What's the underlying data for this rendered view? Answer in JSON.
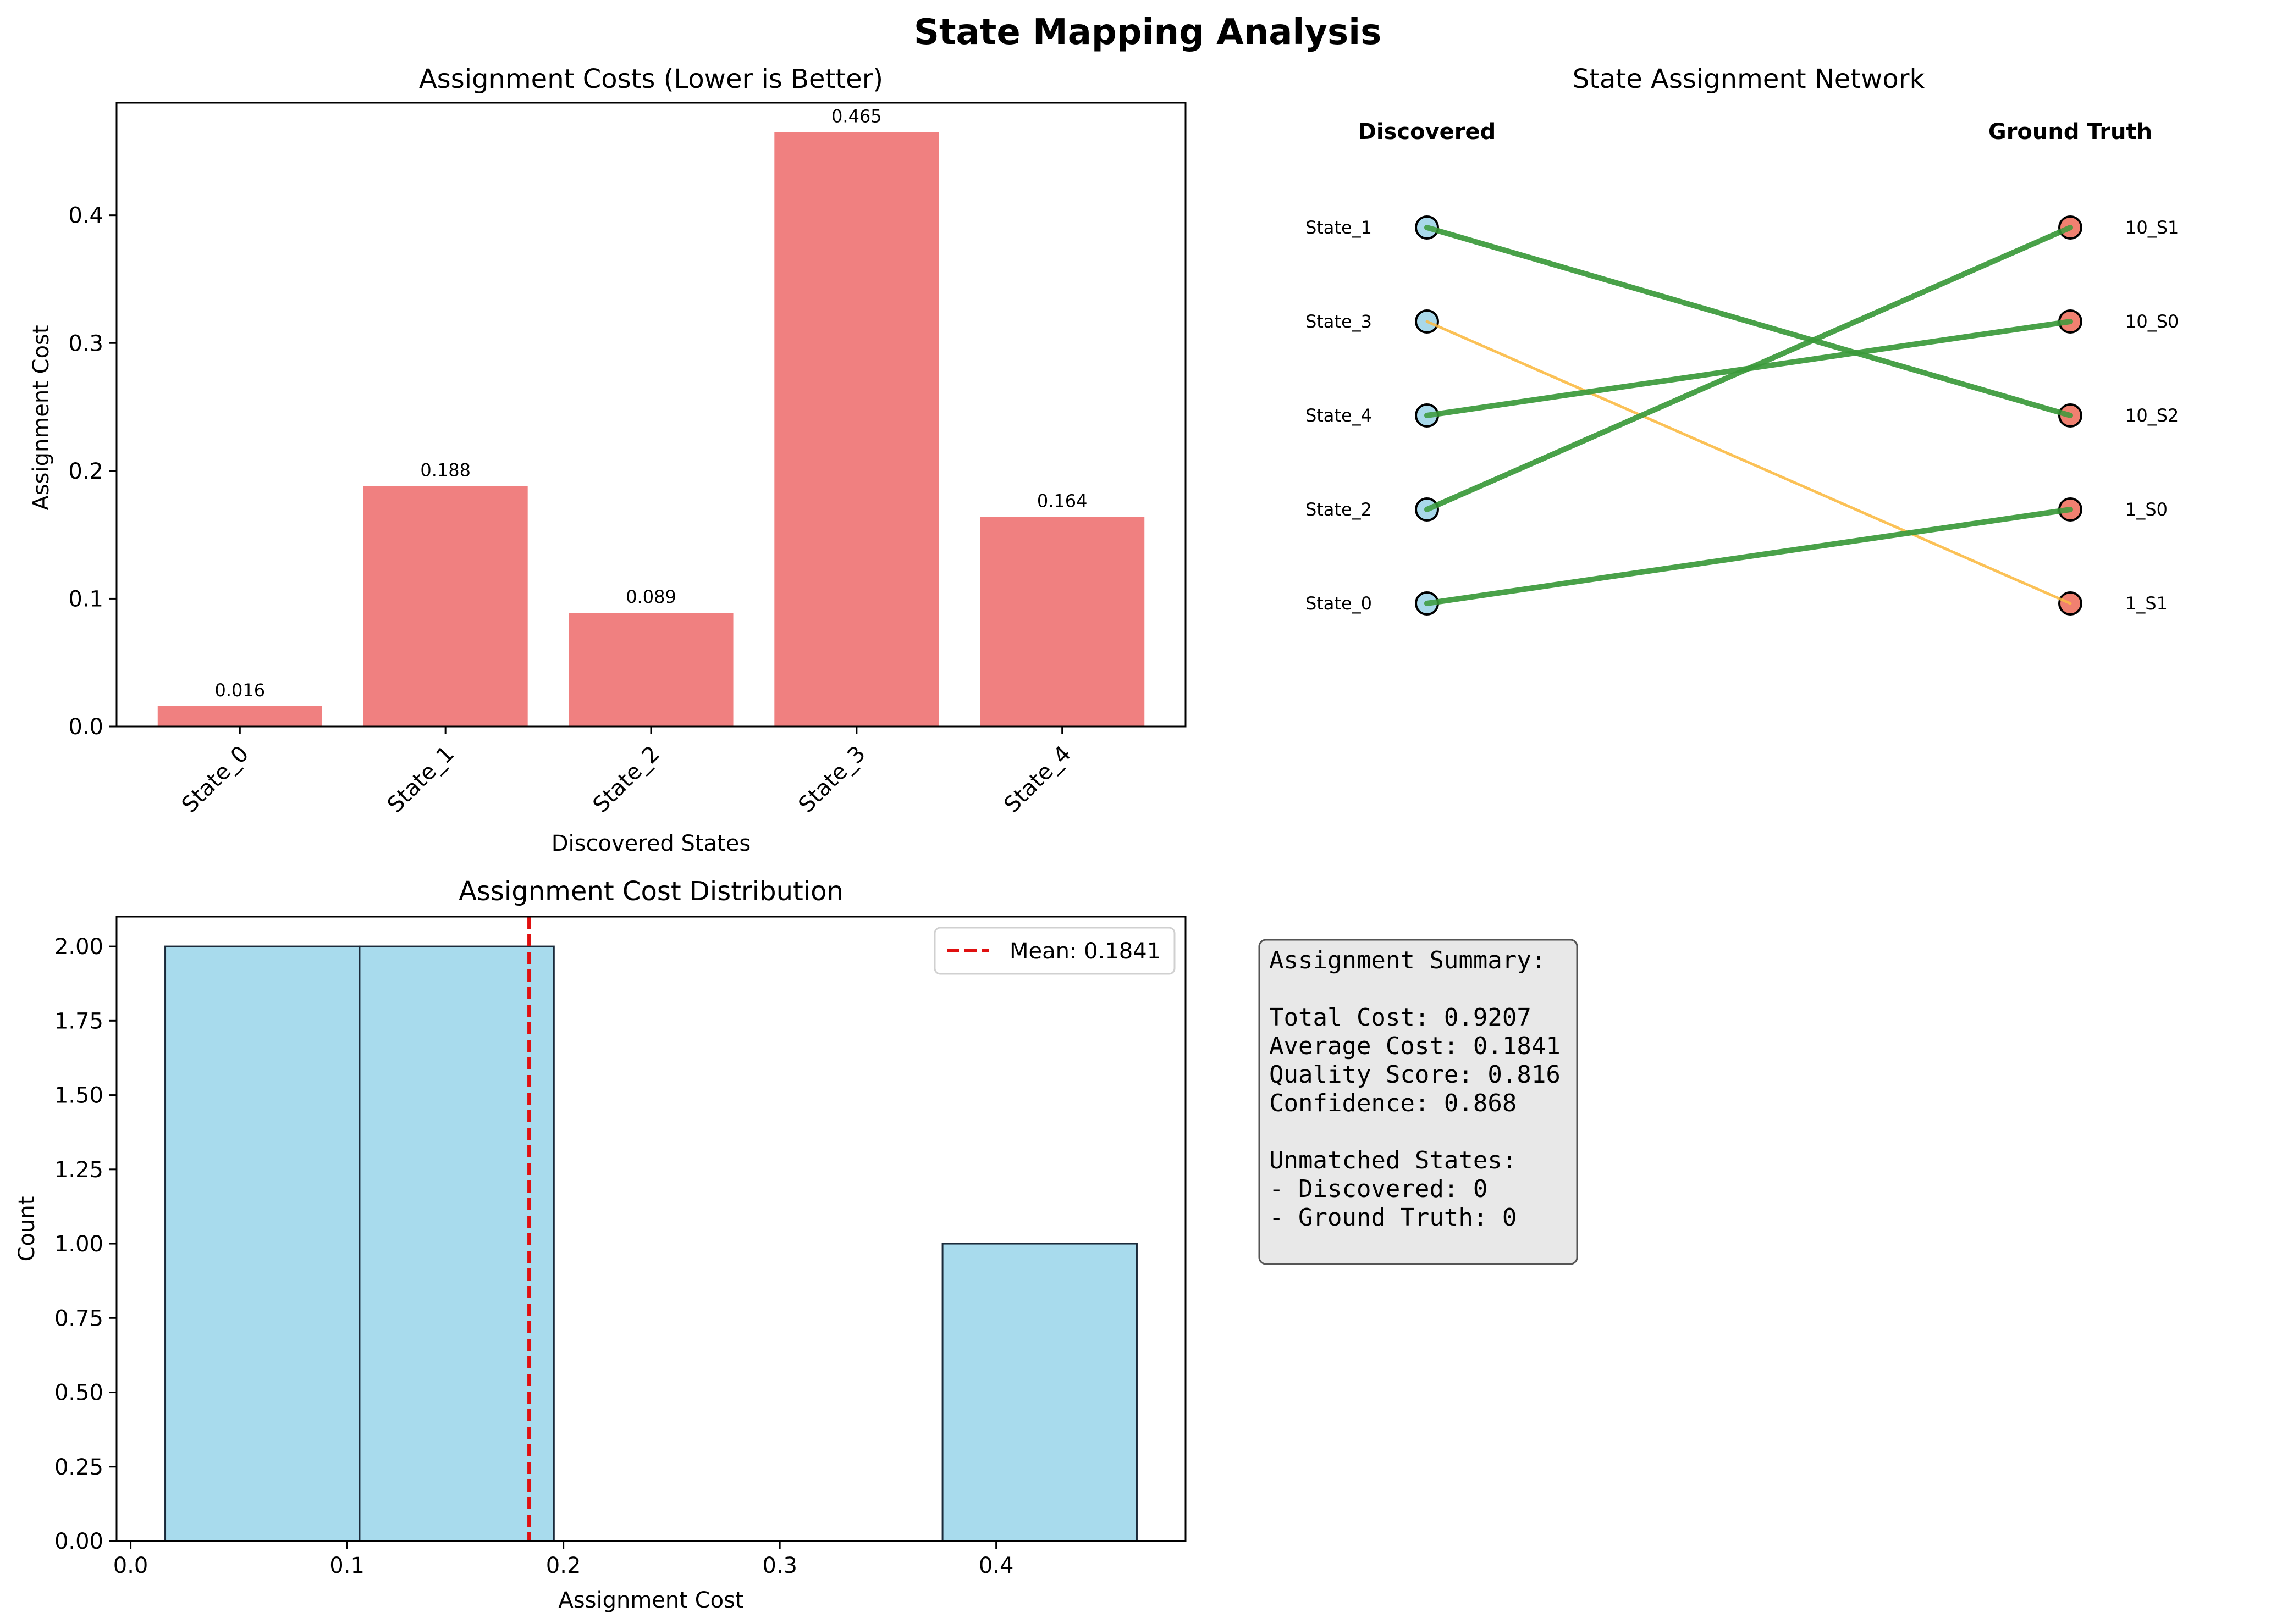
{
  "suptitle": "State Mapping Analysis",
  "colors": {
    "bar": "#f08080",
    "hist": "#a8dbed",
    "edge_good": "#3a9a3a",
    "edge_weak": "#fbbb44",
    "node_discovered": "#a8d8ea",
    "node_truth": "#f08070",
    "mean_line": "#e01010",
    "summary_bg": "#e8e8e8"
  },
  "chart_data": [
    {
      "type": "bar",
      "title": "Assignment Costs (Lower is Better)",
      "xlabel": "Discovered States",
      "ylabel": "Assignment Cost",
      "categories": [
        "State_0",
        "State_1",
        "State_2",
        "State_3",
        "State_4"
      ],
      "values": [
        0.016,
        0.188,
        0.089,
        0.465,
        0.164
      ],
      "value_labels": [
        "0.016",
        "0.188",
        "0.089",
        "0.465",
        "0.164"
      ],
      "ylim": [
        0,
        0.488
      ],
      "yticks": [
        0.0,
        0.1,
        0.2,
        0.3,
        0.4
      ],
      "ytick_labels": [
        "0.0",
        "0.1",
        "0.2",
        "0.3",
        "0.4"
      ]
    },
    {
      "type": "diagram",
      "title": "State Assignment Network",
      "left_header": "Discovered",
      "right_header": "Ground Truth",
      "left_nodes": [
        "State_1",
        "State_3",
        "State_4",
        "State_2",
        "State_0"
      ],
      "right_nodes": [
        "10_S1",
        "10_S0",
        "10_S2",
        "1_S0",
        "1_S1"
      ],
      "edges": [
        {
          "from": "State_1",
          "to": "10_S2",
          "kind": "good"
        },
        {
          "from": "State_3",
          "to": "1_S1",
          "kind": "weak"
        },
        {
          "from": "State_4",
          "to": "10_S0",
          "kind": "good"
        },
        {
          "from": "State_2",
          "to": "10_S1",
          "kind": "good"
        },
        {
          "from": "State_0",
          "to": "1_S0",
          "kind": "good"
        }
      ]
    },
    {
      "type": "histogram",
      "title": "Assignment Cost Distribution",
      "xlabel": "Assignment Cost",
      "ylabel": "Count",
      "bins": [
        {
          "start": 0.016,
          "end": 0.1058,
          "count": 2
        },
        {
          "start": 0.1058,
          "end": 0.1956,
          "count": 2
        },
        {
          "start": 0.1956,
          "end": 0.2854,
          "count": 0
        },
        {
          "start": 0.2854,
          "end": 0.3752,
          "count": 0
        },
        {
          "start": 0.3752,
          "end": 0.465,
          "count": 1
        }
      ],
      "mean": 0.1841,
      "legend_label": "Mean: 0.1841",
      "legend_position": "upper right",
      "xlim": [
        -0.0065,
        0.4875
      ],
      "ylim": [
        0,
        2.1
      ],
      "xticks": [
        0.0,
        0.1,
        0.2,
        0.3,
        0.4
      ],
      "xtick_labels": [
        "0.0",
        "0.1",
        "0.2",
        "0.3",
        "0.4"
      ],
      "yticks": [
        0.0,
        0.25,
        0.5,
        0.75,
        1.0,
        1.25,
        1.5,
        1.75,
        2.0
      ],
      "ytick_labels": [
        "0.00",
        "0.25",
        "0.50",
        "0.75",
        "1.00",
        "1.25",
        "1.50",
        "1.75",
        "2.00"
      ]
    }
  ],
  "summary": {
    "lines": [
      "Assignment Summary:",
      "",
      "Total Cost: 0.9207",
      "Average Cost: 0.1841",
      "Quality Score: 0.816",
      "Confidence: 0.868",
      "",
      "Unmatched States:",
      "- Discovered: 0",
      "- Ground Truth: 0"
    ]
  }
}
